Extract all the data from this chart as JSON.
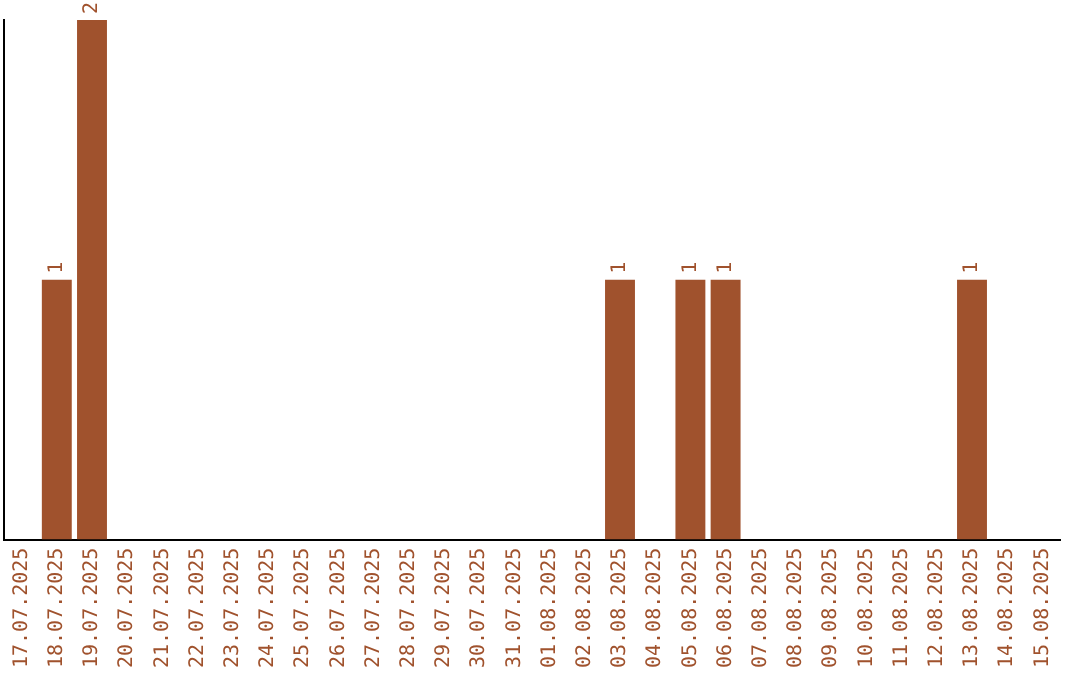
{
  "chart_data": {
    "type": "bar",
    "categories": [
      "17.07.2025",
      "18.07.2025",
      "19.07.2025",
      "20.07.2025",
      "21.07.2025",
      "22.07.2025",
      "23.07.2025",
      "24.07.2025",
      "25.07.2025",
      "26.07.2025",
      "27.07.2025",
      "28.07.2025",
      "29.07.2025",
      "30.07.2025",
      "31.07.2025",
      "01.08.2025",
      "02.08.2025",
      "03.08.2025",
      "04.08.2025",
      "05.08.2025",
      "06.08.2025",
      "07.08.2025",
      "08.08.2025",
      "09.08.2025",
      "10.08.2025",
      "11.08.2025",
      "12.08.2025",
      "13.08.2025",
      "14.08.2025",
      "15.08.2025"
    ],
    "series": [
      {
        "color": "#a0522d",
        "values": [
          0,
          1,
          2,
          0,
          0,
          0,
          0,
          0,
          0,
          0,
          0,
          0,
          0,
          0,
          0,
          0,
          0,
          1,
          0,
          1,
          1,
          0,
          0,
          0,
          0,
          0,
          0,
          1,
          0,
          0
        ],
        "value_labels": [
          null,
          "1",
          "2",
          null,
          null,
          null,
          null,
          null,
          null,
          null,
          null,
          null,
          null,
          null,
          null,
          null,
          null,
          "1",
          null,
          "1",
          "1",
          null,
          null,
          null,
          null,
          null,
          null,
          "1",
          null,
          null
        ]
      }
    ],
    "ylim": [
      0,
      2
    ],
    "grid": false,
    "legend": false,
    "tick_labels": "x"
  }
}
